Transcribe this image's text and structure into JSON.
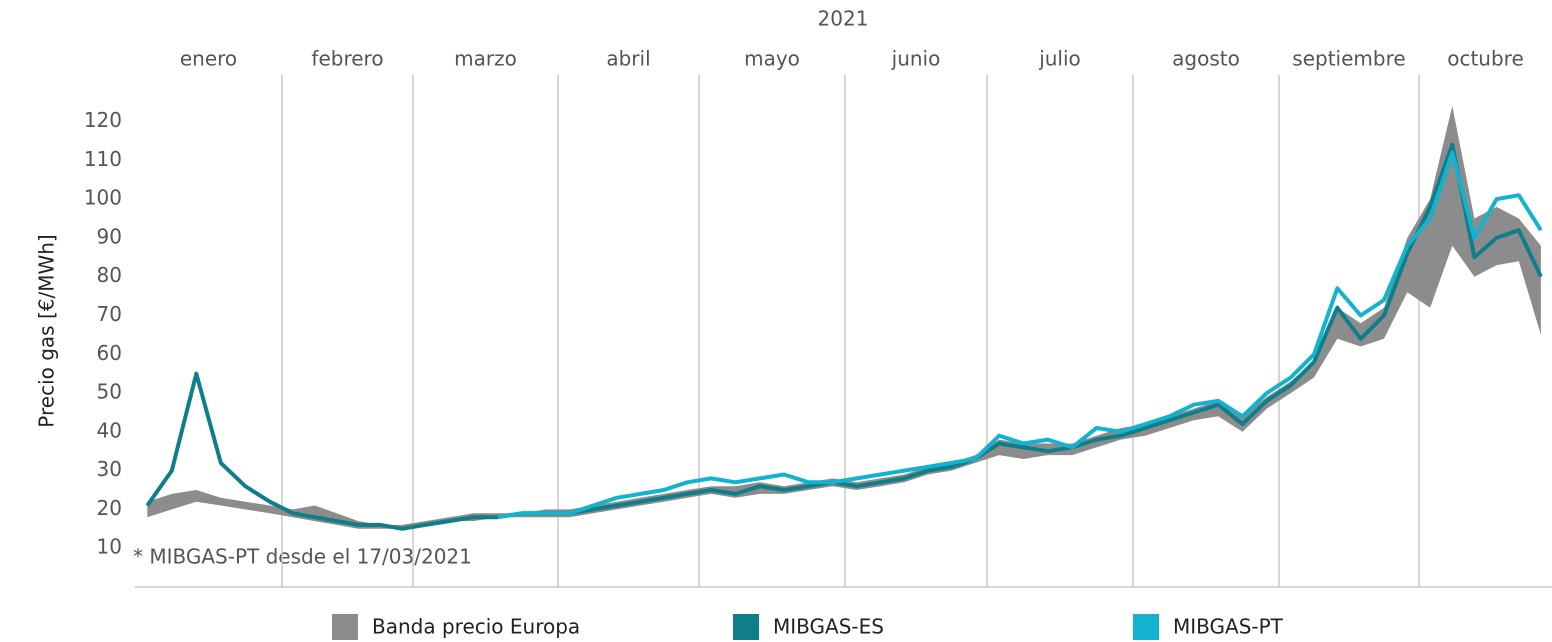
{
  "chart_data": {
    "type": "line",
    "year": "2021",
    "categories": [
      "enero",
      "febrero",
      "marzo",
      "abril",
      "mayo",
      "junio",
      "julio",
      "agosto",
      "septiembre",
      "octubre"
    ],
    "ylabel": "Precio gas [€/MWh]",
    "annotation": "* MIBGAS-PT desde el 17/03/2021",
    "ylim": [
      0,
      132
    ],
    "yticks": [
      10,
      20,
      30,
      40,
      50,
      60,
      70,
      80,
      90,
      100,
      110,
      120
    ],
    "band": {
      "name": "Banda precio Europa",
      "color": "#8c8c8c",
      "high": [
        [
          22,
          24,
          25,
          23,
          22,
          21
        ],
        [
          20,
          21,
          19,
          17,
          16,
          16
        ],
        [
          17,
          18,
          19,
          19,
          19,
          20
        ],
        [
          20,
          21,
          22,
          23,
          24,
          25
        ],
        [
          26,
          26,
          27,
          26,
          27,
          28
        ],
        [
          27,
          28,
          29,
          31,
          32,
          34
        ],
        [
          38,
          37,
          37,
          37,
          39,
          41
        ],
        [
          42,
          44,
          46,
          48,
          44,
          49
        ],
        [
          53,
          58,
          72,
          68,
          72,
          90
        ],
        [
          100,
          124,
          95,
          98,
          95,
          88
        ]
      ],
      "low": [
        [
          18,
          20,
          22,
          21,
          20,
          19
        ],
        [
          18,
          17,
          16,
          15,
          15,
          15
        ],
        [
          16,
          17,
          17,
          18,
          18,
          18
        ],
        [
          18,
          19,
          20,
          21,
          22,
          23
        ],
        [
          24,
          23,
          24,
          24,
          25,
          26
        ],
        [
          25,
          26,
          27,
          29,
          30,
          32
        ],
        [
          34,
          33,
          34,
          34,
          36,
          38
        ],
        [
          39,
          41,
          43,
          44,
          40,
          46
        ],
        [
          50,
          54,
          64,
          62,
          64,
          76
        ],
        [
          72,
          88,
          80,
          83,
          84,
          65
        ]
      ]
    },
    "series": [
      {
        "name": "MIBGAS-ES",
        "color": "#0e7f8a",
        "values": [
          [
            21,
            30,
            55,
            32,
            26,
            22
          ],
          [
            19,
            18,
            17,
            16,
            16,
            15
          ],
          [
            16,
            17,
            18,
            18,
            19,
            19
          ],
          [
            19,
            20,
            21,
            22,
            23,
            24
          ],
          [
            25,
            24,
            26,
            25,
            26,
            27
          ],
          [
            26,
            27,
            28,
            30,
            31,
            33
          ],
          [
            37,
            36,
            35,
            36,
            38,
            39
          ],
          [
            41,
            43,
            45,
            47,
            42,
            48
          ],
          [
            52,
            58,
            72,
            64,
            70,
            86
          ],
          [
            98,
            114,
            85,
            90,
            92,
            80
          ]
        ]
      },
      {
        "name": "MIBGAS-PT",
        "color": "#12b3cf",
        "values": [
          [
            null,
            null,
            null,
            null,
            null,
            null
          ],
          [
            null,
            null,
            null,
            null,
            null,
            null
          ],
          [
            null,
            null,
            null,
            18,
            19,
            19
          ],
          [
            19,
            21,
            23,
            24,
            25,
            27
          ],
          [
            28,
            27,
            28,
            29,
            27,
            27
          ],
          [
            28,
            29,
            30,
            31,
            32,
            33
          ],
          [
            39,
            37,
            38,
            36,
            41,
            40
          ],
          [
            42,
            44,
            47,
            48,
            44,
            50
          ],
          [
            54,
            60,
            77,
            70,
            74,
            88
          ],
          [
            95,
            112,
            90,
            100,
            101,
            92
          ]
        ]
      }
    ]
  }
}
